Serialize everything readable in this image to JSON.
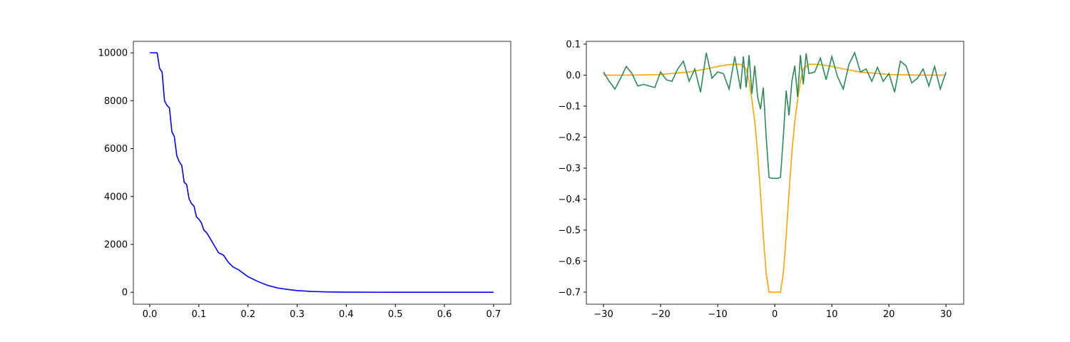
{
  "chart_data": [
    {
      "type": "line",
      "series": [
        {
          "color": "#0000ff",
          "x": [
            0,
            0.015,
            0.02,
            0.025,
            0.03,
            0.035,
            0.04,
            0.045,
            0.05,
            0.055,
            0.06,
            0.065,
            0.07,
            0.075,
            0.08,
            0.085,
            0.09,
            0.095,
            0.1,
            0.105,
            0.11,
            0.115,
            0.12,
            0.13,
            0.14,
            0.15,
            0.16,
            0.17,
            0.18,
            0.19,
            0.2,
            0.22,
            0.24,
            0.26,
            0.28,
            0.3,
            0.33,
            0.36,
            0.4,
            0.45,
            0.5,
            0.6,
            0.7
          ],
          "values": [
            10000,
            10000,
            9350,
            9200,
            8000,
            7800,
            7700,
            6700,
            6500,
            5700,
            5450,
            5300,
            4600,
            4500,
            3900,
            3700,
            3600,
            3150,
            3050,
            2900,
            2600,
            2500,
            2350,
            2000,
            1650,
            1550,
            1250,
            1050,
            950,
            800,
            650,
            450,
            290,
            180,
            120,
            70,
            35,
            15,
            5,
            2,
            0,
            0,
            0
          ]
        }
      ],
      "xlim": [
        -0.0334,
        0.735
      ],
      "ylim": [
        -500,
        10480
      ],
      "xticks": [
        {
          "value": 0,
          "label": "0.0"
        },
        0.1,
        0.2,
        0.3,
        0.4,
        0.5,
        0.6,
        0.7
      ],
      "yticks": [
        0,
        2000,
        4000,
        6000,
        8000,
        10000
      ]
    },
    {
      "type": "line",
      "series": [
        {
          "color": "#ffa500",
          "x": [
            -30,
            -25,
            -20,
            -15,
            -12,
            -10,
            -8,
            -6,
            -5,
            -4.5,
            -4,
            -3.5,
            -3,
            -2.5,
            -2,
            -1.5,
            -1,
            1,
            1.5,
            2,
            2.5,
            3,
            3.5,
            4,
            4.5,
            5,
            6,
            8,
            10,
            12,
            15,
            20,
            25,
            30
          ],
          "values": [
            0,
            0,
            0.002,
            0.01,
            0.02,
            0.028,
            0.034,
            0.035,
            0.02,
            -0.02,
            -0.08,
            -0.15,
            -0.25,
            -0.38,
            -0.52,
            -0.64,
            -0.7,
            -0.7,
            -0.64,
            -0.52,
            -0.38,
            -0.25,
            -0.15,
            -0.08,
            -0.02,
            0.02,
            0.035,
            0.034,
            0.028,
            0.02,
            0.01,
            0.002,
            0,
            0
          ]
        },
        {
          "color": "#2e8b57",
          "x": [
            -30,
            -29,
            -28,
            -27,
            -26,
            -25,
            -24,
            -23,
            -22,
            -21,
            -20,
            -19,
            -18,
            -17,
            -16,
            -15,
            -14,
            -13,
            -12,
            -11,
            -10,
            -9,
            -8,
            -7,
            -6,
            -5.5,
            -5,
            -4.5,
            -4,
            -3.5,
            -3,
            -2.5,
            -2,
            -1.5,
            -1,
            -0.5,
            0,
            0.5,
            1,
            1.5,
            2,
            2.5,
            3,
            3.5,
            4,
            4.5,
            5,
            5.5,
            6,
            7,
            8,
            9,
            10,
            11,
            12,
            13,
            14,
            15,
            16,
            17,
            18,
            19,
            20,
            21,
            22,
            23,
            24,
            25,
            26,
            27,
            28,
            29,
            30
          ],
          "values": [
            0.01,
            -0.02,
            -0.045,
            -0.01,
            0.028,
            0.005,
            -0.035,
            -0.03,
            -0.035,
            -0.04,
            0.01,
            -0.015,
            -0.02,
            0.02,
            0.045,
            -0.02,
            0.02,
            -0.055,
            0.072,
            -0.01,
            0.01,
            0.005,
            -0.045,
            0.06,
            -0.045,
            0.06,
            -0.04,
            0.065,
            -0.06,
            0.03,
            -0.07,
            -0.11,
            -0.04,
            -0.2,
            -0.33,
            -0.333,
            -0.333,
            -0.333,
            -0.33,
            -0.2,
            -0.05,
            -0.13,
            -0.02,
            0.03,
            -0.07,
            0.065,
            -0.03,
            0.07,
            0.005,
            0.01,
            0.055,
            -0.015,
            0.06,
            -0.005,
            -0.045,
            0.035,
            0.072,
            0.01,
            0.02,
            -0.02,
            0.025,
            -0.02,
            0.005,
            -0.055,
            0.045,
            0.03,
            -0.025,
            -0.01,
            0.02,
            -0.035,
            0.028,
            -0.045,
            0.01
          ]
        }
      ],
      "xlim": [
        -33,
        33.1
      ],
      "ylim": [
        -0.739,
        0.109
      ],
      "xticks": [
        {
          "value": -30,
          "label": "−30"
        },
        {
          "value": -20,
          "label": "−20"
        },
        {
          "value": -10,
          "label": "−10"
        },
        0,
        10,
        20,
        30
      ],
      "yticks": [
        0.1,
        {
          "value": 0,
          "label": "0.0"
        },
        {
          "value": -0.1,
          "label": "−0.1"
        },
        {
          "value": -0.2,
          "label": "−0.2"
        },
        {
          "value": -0.3,
          "label": "−0.3"
        },
        {
          "value": -0.4,
          "label": "−0.4"
        },
        {
          "value": -0.5,
          "label": "−0.5"
        },
        {
          "value": -0.6,
          "label": "−0.6"
        },
        {
          "value": -0.7,
          "label": "−0.7"
        }
      ]
    }
  ]
}
